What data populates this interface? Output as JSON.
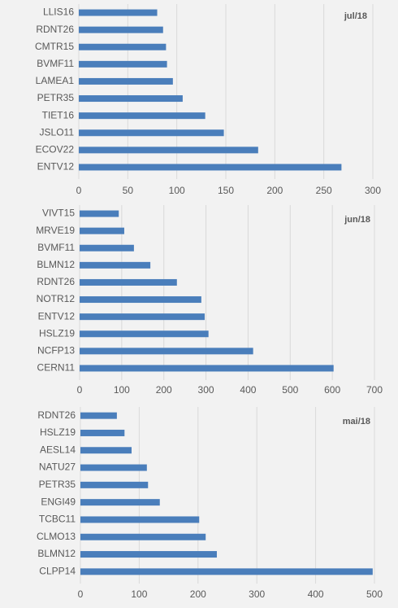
{
  "chart_data": [
    {
      "type": "bar",
      "orientation": "horizontal",
      "title": "jul/18",
      "color": "#4a7ebb",
      "grid": true,
      "categories": [
        "LLIS16",
        "RDNT26",
        "CMTR15",
        "BVMF11",
        "LAMEA1",
        "PETR35",
        "TIET16",
        "JSLO11",
        "ECOV22",
        "ENTV12"
      ],
      "values": [
        80,
        86,
        89,
        90,
        96,
        106,
        129,
        148,
        183,
        268
      ],
      "xlim": [
        0,
        300
      ],
      "xticks": [
        0,
        50,
        100,
        150,
        200,
        250,
        300
      ]
    },
    {
      "type": "bar",
      "orientation": "horizontal",
      "title": "jun/18",
      "color": "#4a7ebb",
      "grid": true,
      "categories": [
        "VIVT15",
        "MRVE19",
        "BVMF11",
        "BLMN12",
        "RDNT26",
        "NOTR12",
        "ENTV12",
        "HSLZ19",
        "NCFP13",
        "CERN11"
      ],
      "values": [
        93,
        106,
        129,
        168,
        231,
        289,
        297,
        306,
        412,
        603
      ],
      "xlim": [
        0,
        700
      ],
      "xticks": [
        0,
        100,
        200,
        300,
        400,
        500,
        600,
        700
      ]
    },
    {
      "type": "bar",
      "orientation": "horizontal",
      "title": "mai/18",
      "color": "#4a7ebb",
      "grid": true,
      "categories": [
        "RDNT26",
        "HSLZ19",
        "AESL14",
        "NATU27",
        "PETR35",
        "ENGI49",
        "TCBC11",
        "CLMO13",
        "BLMN12",
        "CLPP14"
      ],
      "values": [
        62,
        75,
        87,
        113,
        115,
        135,
        202,
        213,
        232,
        497
      ],
      "xlim": [
        0,
        500
      ],
      "xticks": [
        0,
        100,
        200,
        300,
        400,
        500
      ]
    }
  ]
}
